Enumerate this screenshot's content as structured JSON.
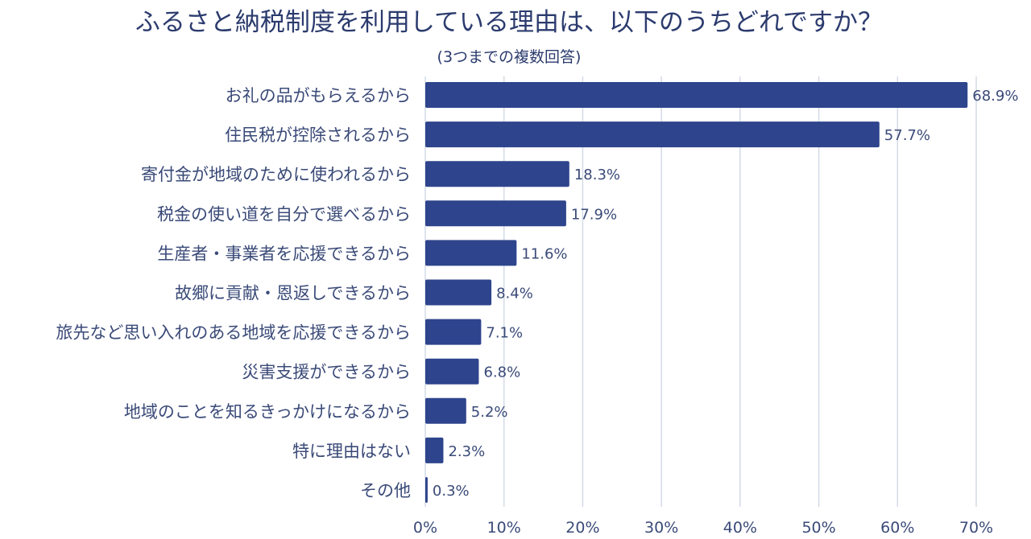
{
  "chart_data": {
    "type": "bar",
    "orientation": "horizontal",
    "title": "ふるさと納税制度を利用している理由は、以下のうちどれですか？",
    "subtitle": "(3つまでの複数回答)",
    "categories": [
      "お礼の品がもらえるから",
      "住民税が控除されるから",
      "寄付金が地域のために使われるから",
      "税金の使い道を自分で選べるから",
      "生産者・事業者を応援できるから",
      "故郷に貢献・恩返しできるから",
      "旅先など思い入れのある地域を応援できるから",
      "災害支援ができるから",
      "地域のことを知るきっかけになるから",
      "特に理由はない",
      "その他"
    ],
    "values": [
      68.9,
      57.7,
      18.3,
      17.9,
      11.6,
      8.4,
      7.1,
      6.8,
      5.2,
      2.3,
      0.3
    ],
    "value_labels": [
      "68.9%",
      "57.7%",
      "18.3%",
      "17.9%",
      "11.6%",
      "8.4%",
      "7.1%",
      "6.8%",
      "5.2%",
      "2.3%",
      "0.3%"
    ],
    "xlim": [
      0,
      70
    ],
    "x_ticks": [
      0,
      10,
      20,
      30,
      40,
      50,
      60,
      70
    ],
    "x_tick_labels": [
      "0%",
      "10%",
      "20%",
      "30%",
      "40%",
      "50%",
      "60%",
      "70%"
    ],
    "grid": true,
    "legend": "none",
    "bar_color": "#2e448c"
  }
}
